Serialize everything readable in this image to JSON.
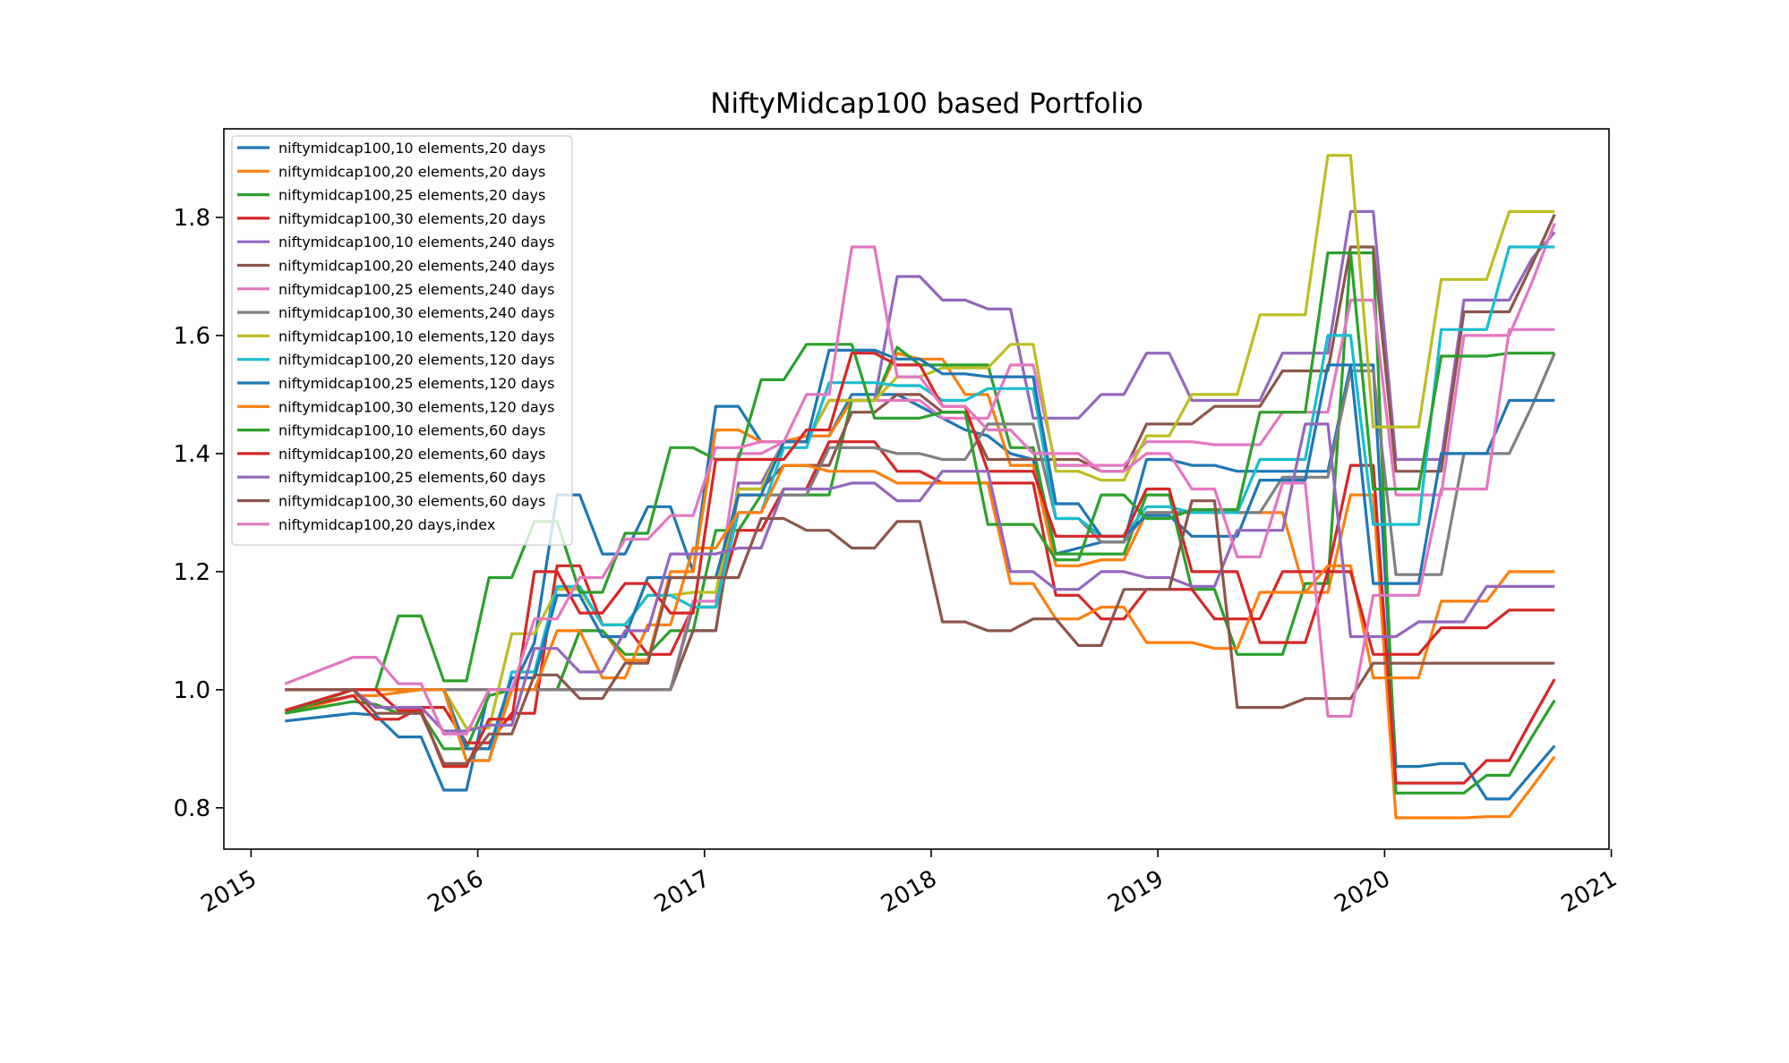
{
  "chart_data": {
    "type": "line",
    "title": "NiftyMidcap100 based Portfolio",
    "xlabel": "",
    "ylabel": "",
    "x_ticks": [
      "2015",
      "2016",
      "2017",
      "2018",
      "2019",
      "2020",
      "2021"
    ],
    "y_ticks": [
      "0.8",
      "1.0",
      "1.2",
      "1.4",
      "1.6",
      "1.8"
    ],
    "xlim": [
      2014.88,
      2020.99
    ],
    "ylim": [
      0.73,
      1.95
    ],
    "grid": false,
    "legend_position": "top-left",
    "x": [
      2015.15,
      2015.45,
      2015.55,
      2015.65,
      2015.75,
      2015.85,
      2015.95,
      2016.05,
      2016.15,
      2016.25,
      2016.35,
      2016.45,
      2016.55,
      2016.65,
      2016.75,
      2016.85,
      2016.95,
      2017.05,
      2017.15,
      2017.25,
      2017.35,
      2017.45,
      2017.55,
      2017.65,
      2017.75,
      2017.85,
      2017.95,
      2018.05,
      2018.15,
      2018.25,
      2018.35,
      2018.45,
      2018.55,
      2018.65,
      2018.75,
      2018.85,
      2018.95,
      2019.05,
      2019.15,
      2019.25,
      2019.35,
      2019.45,
      2019.55,
      2019.65,
      2019.75,
      2019.85,
      2019.95,
      2020.05,
      2020.15,
      2020.25,
      2020.35,
      2020.45,
      2020.55,
      2020.65,
      2020.75
    ],
    "series": [
      {
        "name": "niftymidcap100,10 elements,20 days",
        "color": "#1f77b4",
        "values": [
          0.947,
          0.96,
          0.957,
          0.92,
          0.92,
          0.83,
          0.83,
          1.0,
          1.0,
          1.08,
          1.33,
          1.33,
          1.23,
          1.23,
          1.31,
          1.31,
          1.2,
          1.48,
          1.48,
          1.42,
          1.42,
          1.43,
          1.43,
          1.5,
          1.5,
          1.5,
          1.48,
          1.46,
          1.44,
          1.43,
          1.4,
          1.39,
          1.23,
          1.24,
          1.25,
          1.25,
          1.39,
          1.39,
          1.38,
          1.38,
          1.37,
          1.37,
          1.37,
          1.37,
          1.37,
          1.55,
          1.55,
          0.87,
          0.87,
          0.875,
          0.875,
          0.815,
          0.815,
          0.86,
          0.905
        ]
      },
      {
        "name": "niftymidcap100,20 elements,20 days",
        "color": "#ff7f0e",
        "values": [
          0.96,
          0.99,
          0.99,
          0.995,
          1.0,
          1.0,
          0.9,
          0.9,
          1.0,
          1.0,
          1.0,
          1.1,
          1.1,
          1.05,
          1.05,
          1.2,
          1.2,
          1.44,
          1.44,
          1.42,
          1.42,
          1.43,
          1.43,
          1.49,
          1.49,
          1.57,
          1.56,
          1.56,
          1.5,
          1.5,
          1.38,
          1.38,
          1.21,
          1.21,
          1.22,
          1.22,
          1.3,
          1.3,
          1.3,
          1.3,
          1.3,
          1.3,
          1.3,
          1.165,
          1.165,
          1.33,
          1.33,
          0.783,
          0.783,
          0.783,
          0.783,
          0.785,
          0.785,
          0.835,
          0.887
        ]
      },
      {
        "name": "niftymidcap100,25 elements,20 days",
        "color": "#2ca02c",
        "values": [
          0.96,
          0.98,
          0.975,
          0.96,
          0.96,
          0.9,
          0.9,
          0.99,
          1.0,
          1.0,
          1.0,
          1.1,
          1.1,
          1.06,
          1.06,
          1.1,
          1.1,
          1.27,
          1.27,
          1.33,
          1.33,
          1.33,
          1.33,
          1.49,
          1.49,
          1.58,
          1.55,
          1.55,
          1.55,
          1.55,
          1.41,
          1.41,
          1.23,
          1.23,
          1.23,
          1.23,
          1.33,
          1.33,
          1.17,
          1.17,
          1.06,
          1.06,
          1.06,
          1.18,
          1.18,
          1.74,
          1.74,
          0.825,
          0.825,
          0.825,
          0.825,
          0.855,
          0.855,
          0.92,
          0.982
        ]
      },
      {
        "name": "niftymidcap100,30 elements,20 days",
        "color": "#d62728",
        "values": [
          0.965,
          0.99,
          0.95,
          0.95,
          0.97,
          0.97,
          0.91,
          0.91,
          0.96,
          0.96,
          1.21,
          1.21,
          1.11,
          1.11,
          1.06,
          1.06,
          1.14,
          1.14,
          1.27,
          1.27,
          1.34,
          1.34,
          1.42,
          1.42,
          1.42,
          1.37,
          1.37,
          1.35,
          1.35,
          1.35,
          1.35,
          1.35,
          1.16,
          1.16,
          1.12,
          1.12,
          1.17,
          1.17,
          1.17,
          1.12,
          1.12,
          1.12,
          1.2,
          1.2,
          1.2,
          1.38,
          1.38,
          0.842,
          0.842,
          0.842,
          0.842,
          0.88,
          0.88,
          0.95,
          1.018
        ]
      },
      {
        "name": "niftymidcap100,10 elements,240 days",
        "color": "#9467bd",
        "values": [
          1.0,
          1.0,
          1.0,
          1.0,
          1.0,
          1.0,
          1.0,
          1.0,
          1.0,
          1.0,
          1.0,
          1.0,
          1.0,
          1.0,
          1.0,
          1.0,
          1.1,
          1.1,
          1.35,
          1.35,
          1.42,
          1.42,
          1.49,
          1.49,
          1.49,
          1.7,
          1.7,
          1.66,
          1.66,
          1.645,
          1.645,
          1.46,
          1.46,
          1.46,
          1.5,
          1.5,
          1.57,
          1.57,
          1.49,
          1.49,
          1.49,
          1.49,
          1.57,
          1.57,
          1.57,
          1.81,
          1.81,
          1.39,
          1.39,
          1.39,
          1.66,
          1.66,
          1.66,
          1.73,
          1.775
        ]
      },
      {
        "name": "niftymidcap100,20 elements,240 days",
        "color": "#8c564b",
        "values": [
          1.0,
          1.0,
          1.0,
          1.0,
          1.0,
          1.0,
          1.0,
          1.0,
          1.0,
          1.0,
          1.0,
          1.0,
          1.0,
          1.0,
          1.0,
          1.0,
          1.1,
          1.1,
          1.34,
          1.34,
          1.38,
          1.38,
          1.38,
          1.47,
          1.47,
          1.5,
          1.5,
          1.47,
          1.47,
          1.39,
          1.39,
          1.39,
          1.39,
          1.39,
          1.37,
          1.37,
          1.45,
          1.45,
          1.45,
          1.48,
          1.48,
          1.48,
          1.54,
          1.54,
          1.54,
          1.75,
          1.75,
          1.37,
          1.37,
          1.37,
          1.64,
          1.64,
          1.64,
          1.72,
          1.805
        ]
      },
      {
        "name": "niftymidcap100,25 elements,240 days",
        "color": "#e377c2",
        "values": [
          1.0,
          1.0,
          1.0,
          1.0,
          1.0,
          1.0,
          1.0,
          1.0,
          1.0,
          1.0,
          1.0,
          1.0,
          1.0,
          1.0,
          1.0,
          1.0,
          1.15,
          1.15,
          1.4,
          1.4,
          1.42,
          1.42,
          1.49,
          1.49,
          1.49,
          1.49,
          1.49,
          1.46,
          1.46,
          1.46,
          1.55,
          1.55,
          1.38,
          1.38,
          1.38,
          1.38,
          1.42,
          1.42,
          1.42,
          1.415,
          1.415,
          1.415,
          1.47,
          1.47,
          1.47,
          1.66,
          1.66,
          1.33,
          1.33,
          1.33,
          1.6,
          1.6,
          1.6,
          1.69,
          1.79
        ]
      },
      {
        "name": "niftymidcap100,30 elements,240 days",
        "color": "#7f7f7f",
        "values": [
          1.0,
          1.0,
          1.0,
          1.0,
          1.0,
          1.0,
          1.0,
          1.0,
          1.0,
          1.0,
          1.0,
          1.0,
          1.0,
          1.0,
          1.0,
          1.0,
          1.14,
          1.14,
          1.33,
          1.33,
          1.33,
          1.33,
          1.41,
          1.41,
          1.41,
          1.4,
          1.4,
          1.39,
          1.39,
          1.45,
          1.45,
          1.45,
          1.29,
          1.29,
          1.25,
          1.25,
          1.3,
          1.3,
          1.3,
          1.3,
          1.3,
          1.3,
          1.36,
          1.36,
          1.36,
          1.54,
          1.54,
          1.195,
          1.195,
          1.195,
          1.4,
          1.4,
          1.4,
          1.48,
          1.57
        ]
      },
      {
        "name": "niftymidcap100,10 elements,120 days",
        "color": "#bcbd22",
        "values": [
          1.0,
          1.0,
          1.0,
          1.0,
          1.0,
          1.0,
          0.935,
          0.935,
          1.095,
          1.095,
          1.17,
          1.17,
          1.11,
          1.11,
          1.16,
          1.16,
          1.165,
          1.165,
          1.34,
          1.34,
          1.42,
          1.42,
          1.49,
          1.49,
          1.49,
          1.53,
          1.53,
          1.545,
          1.545,
          1.545,
          1.585,
          1.585,
          1.37,
          1.37,
          1.355,
          1.355,
          1.43,
          1.43,
          1.5,
          1.5,
          1.5,
          1.635,
          1.635,
          1.635,
          1.905,
          1.905,
          1.445,
          1.445,
          1.445,
          1.695,
          1.695,
          1.695,
          1.81,
          1.81,
          1.81
        ]
      },
      {
        "name": "niftymidcap100,20 elements,120 days",
        "color": "#17becf",
        "values": [
          1.0,
          1.0,
          1.0,
          1.0,
          1.0,
          1.0,
          0.88,
          0.88,
          1.03,
          1.03,
          1.175,
          1.175,
          1.11,
          1.11,
          1.16,
          1.16,
          1.14,
          1.14,
          1.3,
          1.3,
          1.41,
          1.41,
          1.52,
          1.52,
          1.52,
          1.515,
          1.515,
          1.49,
          1.49,
          1.51,
          1.51,
          1.51,
          1.29,
          1.29,
          1.26,
          1.26,
          1.31,
          1.31,
          1.3,
          1.3,
          1.3,
          1.39,
          1.39,
          1.39,
          1.6,
          1.6,
          1.28,
          1.28,
          1.28,
          1.61,
          1.61,
          1.61,
          1.75,
          1.75,
          1.75
        ]
      },
      {
        "name": "niftymidcap100,25 elements,120 days",
        "color": "#1f77b4",
        "values": [
          1.0,
          1.0,
          1.0,
          1.0,
          1.0,
          1.0,
          0.9,
          0.9,
          1.02,
          1.02,
          1.16,
          1.16,
          1.09,
          1.09,
          1.19,
          1.19,
          1.19,
          1.19,
          1.33,
          1.33,
          1.42,
          1.42,
          1.575,
          1.575,
          1.575,
          1.56,
          1.56,
          1.535,
          1.535,
          1.53,
          1.53,
          1.53,
          1.315,
          1.315,
          1.26,
          1.26,
          1.295,
          1.295,
          1.26,
          1.26,
          1.26,
          1.355,
          1.355,
          1.355,
          1.55,
          1.55,
          1.18,
          1.18,
          1.18,
          1.4,
          1.4,
          1.4,
          1.49,
          1.49,
          1.49
        ]
      },
      {
        "name": "niftymidcap100,30 elements,120 days",
        "color": "#ff7f0e",
        "values": [
          1.0,
          1.0,
          1.0,
          1.0,
          1.0,
          1.0,
          0.88,
          0.88,
          1.0,
          1.0,
          1.1,
          1.1,
          1.02,
          1.02,
          1.11,
          1.11,
          1.24,
          1.24,
          1.3,
          1.3,
          1.38,
          1.38,
          1.37,
          1.37,
          1.37,
          1.35,
          1.35,
          1.35,
          1.35,
          1.35,
          1.18,
          1.18,
          1.12,
          1.12,
          1.14,
          1.14,
          1.08,
          1.08,
          1.08,
          1.07,
          1.07,
          1.165,
          1.165,
          1.165,
          1.21,
          1.21,
          1.02,
          1.02,
          1.02,
          1.15,
          1.15,
          1.15,
          1.2,
          1.2,
          1.2
        ]
      },
      {
        "name": "niftymidcap100,10 elements,60 days",
        "color": "#2ca02c",
        "values": [
          0.96,
          1.0,
          1.0,
          1.125,
          1.125,
          1.015,
          1.015,
          1.19,
          1.19,
          1.285,
          1.285,
          1.165,
          1.165,
          1.265,
          1.265,
          1.41,
          1.41,
          1.39,
          1.39,
          1.525,
          1.525,
          1.585,
          1.585,
          1.585,
          1.46,
          1.46,
          1.46,
          1.47,
          1.47,
          1.28,
          1.28,
          1.28,
          1.22,
          1.22,
          1.33,
          1.33,
          1.29,
          1.29,
          1.305,
          1.305,
          1.305,
          1.47,
          1.47,
          1.47,
          1.74,
          1.74,
          1.34,
          1.34,
          1.34,
          1.565,
          1.565,
          1.565,
          1.57,
          1.57,
          1.57
        ]
      },
      {
        "name": "niftymidcap100,20 elements,60 days",
        "color": "#d62728",
        "values": [
          0.965,
          1.0,
          1.0,
          0.965,
          0.965,
          0.87,
          0.87,
          0.95,
          0.95,
          1.2,
          1.2,
          1.13,
          1.13,
          1.18,
          1.18,
          1.13,
          1.13,
          1.39,
          1.39,
          1.39,
          1.39,
          1.44,
          1.44,
          1.57,
          1.57,
          1.55,
          1.55,
          1.48,
          1.48,
          1.37,
          1.37,
          1.37,
          1.26,
          1.26,
          1.26,
          1.26,
          1.34,
          1.34,
          1.2,
          1.2,
          1.2,
          1.08,
          1.08,
          1.08,
          1.2,
          1.2,
          1.06,
          1.06,
          1.06,
          1.105,
          1.105,
          1.105,
          1.135,
          1.135,
          1.135
        ]
      },
      {
        "name": "niftymidcap100,25 elements,60 days",
        "color": "#9467bd",
        "values": [
          1.0,
          1.0,
          0.97,
          0.97,
          0.97,
          0.93,
          0.93,
          0.94,
          0.94,
          1.07,
          1.07,
          1.03,
          1.03,
          1.1,
          1.1,
          1.23,
          1.23,
          1.23,
          1.24,
          1.24,
          1.34,
          1.34,
          1.34,
          1.35,
          1.35,
          1.32,
          1.32,
          1.37,
          1.37,
          1.37,
          1.2,
          1.2,
          1.17,
          1.17,
          1.2,
          1.2,
          1.19,
          1.19,
          1.175,
          1.175,
          1.27,
          1.27,
          1.27,
          1.45,
          1.45,
          1.09,
          1.09,
          1.09,
          1.115,
          1.115,
          1.115,
          1.175,
          1.175,
          1.175,
          1.175
        ]
      },
      {
        "name": "niftymidcap100,30 elements,60 days",
        "color": "#8c564b",
        "values": [
          1.0,
          1.0,
          0.96,
          0.96,
          0.96,
          0.875,
          0.875,
          0.925,
          0.925,
          1.025,
          1.025,
          0.985,
          0.985,
          1.045,
          1.045,
          1.19,
          1.19,
          1.19,
          1.19,
          1.29,
          1.29,
          1.27,
          1.27,
          1.24,
          1.24,
          1.285,
          1.285,
          1.115,
          1.115,
          1.1,
          1.1,
          1.12,
          1.12,
          1.075,
          1.075,
          1.17,
          1.17,
          1.17,
          1.32,
          1.32,
          0.97,
          0.97,
          0.97,
          0.985,
          0.985,
          0.985,
          1.045,
          1.045,
          1.045,
          1.045,
          1.045,
          1.045,
          1.045,
          1.045,
          1.045
        ]
      },
      {
        "name": "niftymidcap100,20 days,index",
        "color": "#e377c2",
        "values": [
          1.01,
          1.055,
          1.055,
          1.01,
          1.01,
          0.925,
          0.925,
          1.0,
          1.0,
          1.12,
          1.12,
          1.19,
          1.19,
          1.255,
          1.255,
          1.295,
          1.295,
          1.41,
          1.41,
          1.42,
          1.42,
          1.5,
          1.5,
          1.75,
          1.75,
          1.53,
          1.53,
          1.48,
          1.48,
          1.44,
          1.44,
          1.4,
          1.4,
          1.4,
          1.37,
          1.37,
          1.4,
          1.4,
          1.34,
          1.34,
          1.225,
          1.225,
          1.35,
          1.35,
          0.955,
          0.955,
          1.16,
          1.16,
          1.16,
          1.34,
          1.34,
          1.34,
          1.61,
          1.61,
          1.61
        ]
      }
    ]
  }
}
